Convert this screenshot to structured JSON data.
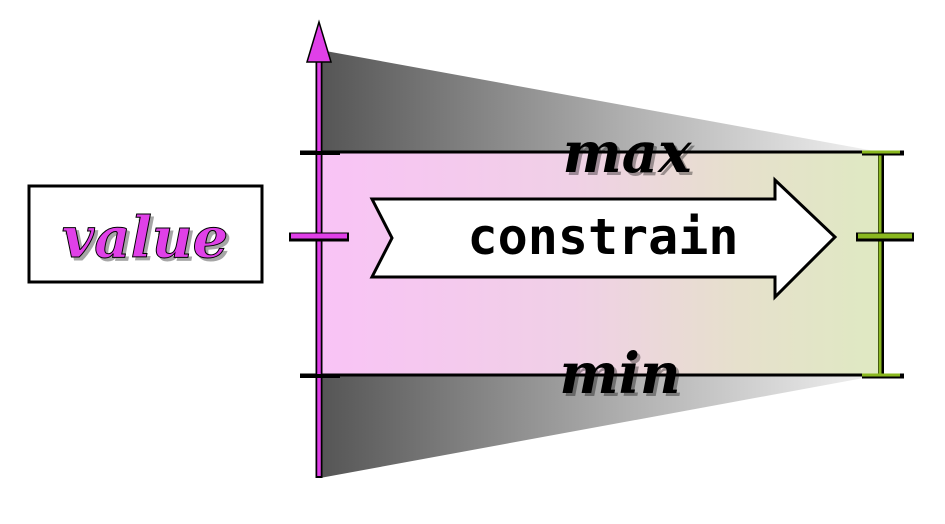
{
  "labels": {
    "value": "value",
    "constrain": "constrain",
    "max": "max",
    "min": "min"
  },
  "colors": {
    "value_accent": "#e040e8",
    "value_fill_light": "#f7c4f5",
    "result_accent": "#8ab81f",
    "result_fill_light": "#dfe8c4",
    "band_dark": "#555555",
    "outline": "#000000"
  }
}
